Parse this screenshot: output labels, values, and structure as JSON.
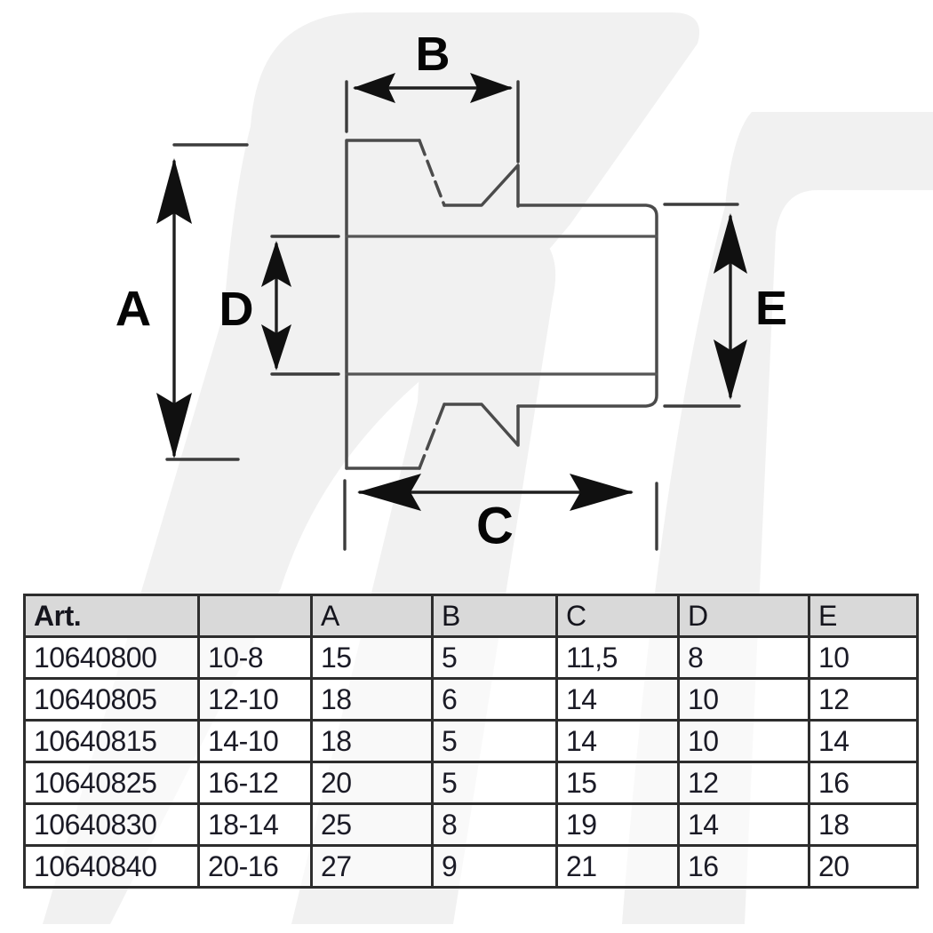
{
  "diagram": {
    "labels": {
      "A": "A",
      "B": "B",
      "C": "C",
      "D": "D",
      "E": "E"
    }
  },
  "table": {
    "headers": [
      "Art.",
      "",
      "A",
      "B",
      "C",
      "D",
      "E"
    ],
    "rows": [
      [
        "10640800",
        "10-8",
        "15",
        "5",
        "11,5",
        "8",
        "10"
      ],
      [
        "10640805",
        "12-10",
        "18",
        "6",
        "14",
        "10",
        "12"
      ],
      [
        "10640815",
        "14-10",
        "18",
        "5",
        "14",
        "10",
        "14"
      ],
      [
        "10640825",
        "16-12",
        "20",
        "5",
        "15",
        "12",
        "16"
      ],
      [
        "10640830",
        "18-14",
        "25",
        "8",
        "19",
        "14",
        "18"
      ],
      [
        "10640840",
        "20-16",
        "27",
        "9",
        "21",
        "16",
        "20"
      ]
    ]
  },
  "colors": {
    "watermark": "#f1f1f1",
    "part_line": "#4b4b4b",
    "dimension_line": "#1e1e1e",
    "label_text": "#050505",
    "table_border": "#2d2d2d",
    "header_bg": "#d9d9d9",
    "cell_text": "#1b1b26"
  }
}
